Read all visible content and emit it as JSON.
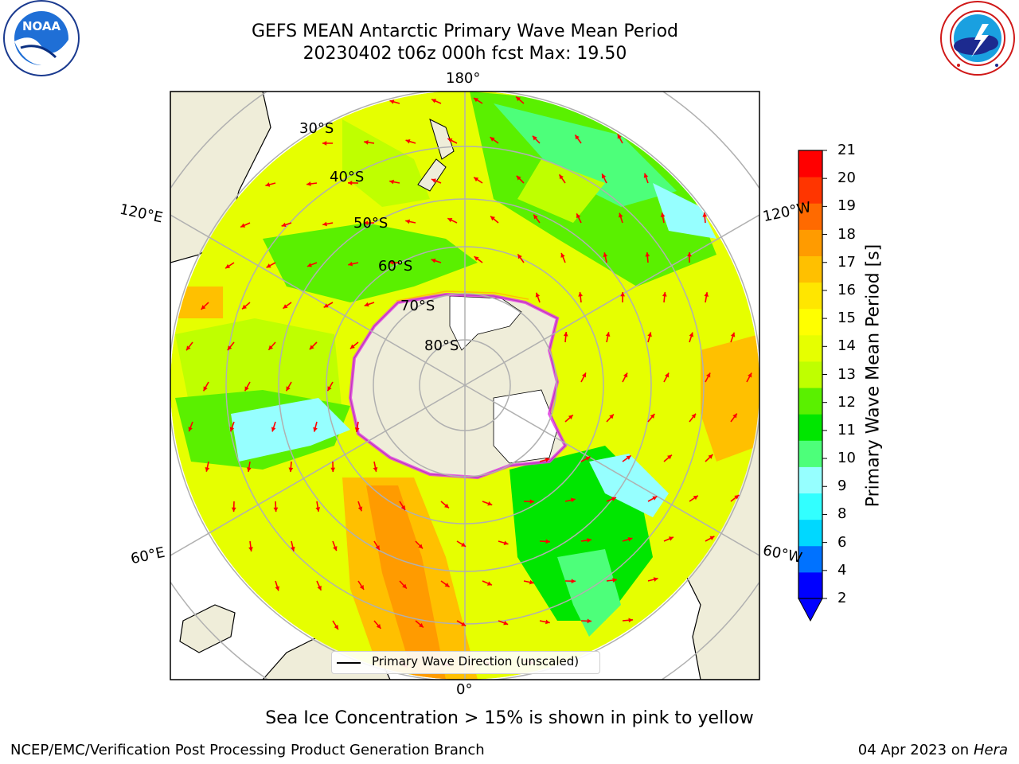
{
  "title": {
    "line1": "GEFS MEAN Antarctic Primary Wave Mean Period",
    "line2": "20230402 t06z 000h fcst   Max: 19.50"
  },
  "logos": {
    "left": "noaa-logo",
    "left_text": "NOAA",
    "right": "national-weather-service-logo"
  },
  "map": {
    "longitude_labels": [
      "180°",
      "120°E",
      "120°W",
      "60°E",
      "60°W",
      "0°"
    ],
    "latitude_labels": [
      "30°S",
      "40°S",
      "50°S",
      "60°S",
      "70°S",
      "80°S"
    ],
    "legend": "Primary Wave Direction (unscaled)",
    "colors": {
      "land": "#efedd9",
      "ice_edge": "#e040e0",
      "arrows": "#ff0000",
      "grid": "#b0b0b0"
    }
  },
  "colorbar": {
    "label": "Primary Wave Mean Period [s]",
    "ticks": [
      "21",
      "20",
      "19",
      "18",
      "17",
      "16",
      "15",
      "14",
      "13",
      "12",
      "11",
      "10",
      "9",
      "8",
      "6",
      "4",
      "2"
    ],
    "colors": [
      "#0000ff",
      "#0072ff",
      "#00d8ff",
      "#32ffff",
      "#96ffff",
      "#4dff7a",
      "#00e600",
      "#5af000",
      "#bfff00",
      "#e6ff00",
      "#ffff00",
      "#ffe600",
      "#ffc000",
      "#ff9b00",
      "#ff6a00",
      "#ff3500",
      "#ff0000"
    ]
  },
  "subtitle": "Sea Ice Concentration > 15% is shown in pink to yellow",
  "footer": {
    "credit": "NCEP/EMC/Verification Post Processing Product Generation Branch",
    "date_prefix": "04 Apr 2023 on ",
    "host": "Hera"
  }
}
